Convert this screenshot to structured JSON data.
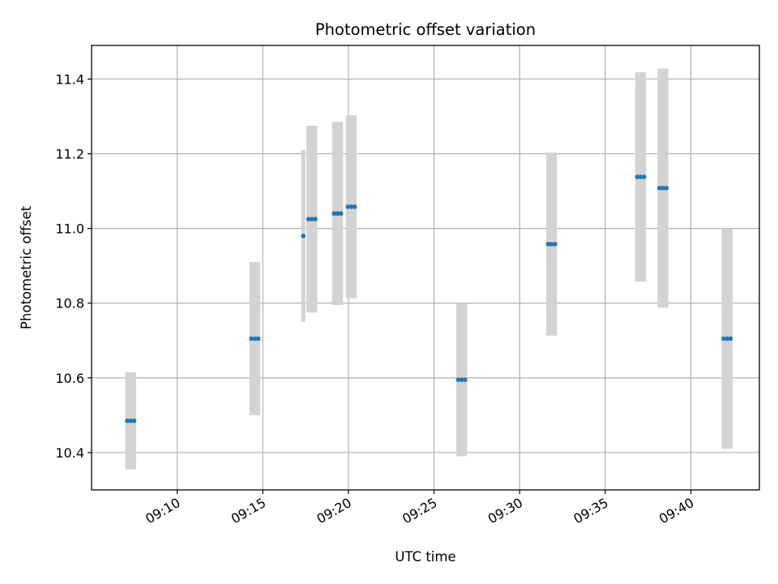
{
  "chart_data": {
    "type": "scatter",
    "title": "Photometric offset variation",
    "xlabel": "UTC time",
    "ylabel": "Photometric offset",
    "x_axis": {
      "kind": "time",
      "start": "09:05:00",
      "end": "09:44:00",
      "ticks": [
        "09:10",
        "09:15",
        "09:20",
        "09:25",
        "09:30",
        "09:35",
        "09:40"
      ]
    },
    "ylim": [
      10.3,
      11.49
    ],
    "yticks": [
      "10.4",
      "10.6",
      "10.8",
      "11.0",
      "11.2",
      "11.4"
    ],
    "grid": true,
    "colors": {
      "points": "#1f77b4",
      "errorbars": "#d3d3d3",
      "grid": "#b0b0b0"
    },
    "points": [
      {
        "time": "09:07:05",
        "y": 10.485,
        "err": 0.13
      },
      {
        "time": "09:07:17",
        "y": 10.485,
        "err": 0.13
      },
      {
        "time": "09:07:29",
        "y": 10.485,
        "err": 0.13
      },
      {
        "time": "09:14:20",
        "y": 10.705,
        "err": 0.205
      },
      {
        "time": "09:14:32",
        "y": 10.705,
        "err": 0.205
      },
      {
        "time": "09:14:44",
        "y": 10.705,
        "err": 0.205
      },
      {
        "time": "09:17:22",
        "y": 10.98,
        "err": 0.23
      },
      {
        "time": "09:17:40",
        "y": 11.025,
        "err": 0.25
      },
      {
        "time": "09:17:52",
        "y": 11.025,
        "err": 0.25
      },
      {
        "time": "09:18:04",
        "y": 11.025,
        "err": 0.25
      },
      {
        "time": "09:19:10",
        "y": 11.04,
        "err": 0.245
      },
      {
        "time": "09:19:22",
        "y": 11.04,
        "err": 0.245
      },
      {
        "time": "09:19:34",
        "y": 11.04,
        "err": 0.245
      },
      {
        "time": "09:19:58",
        "y": 11.058,
        "err": 0.245
      },
      {
        "time": "09:20:10",
        "y": 11.058,
        "err": 0.245
      },
      {
        "time": "09:20:22",
        "y": 11.058,
        "err": 0.245
      },
      {
        "time": "09:26:25",
        "y": 10.595,
        "err": 0.205
      },
      {
        "time": "09:26:37",
        "y": 10.595,
        "err": 0.205
      },
      {
        "time": "09:26:49",
        "y": 10.595,
        "err": 0.205
      },
      {
        "time": "09:31:40",
        "y": 10.958,
        "err": 0.245
      },
      {
        "time": "09:31:52",
        "y": 10.958,
        "err": 0.245
      },
      {
        "time": "09:32:04",
        "y": 10.958,
        "err": 0.245
      },
      {
        "time": "09:36:52",
        "y": 11.138,
        "err": 0.28
      },
      {
        "time": "09:37:04",
        "y": 11.138,
        "err": 0.28
      },
      {
        "time": "09:37:16",
        "y": 11.138,
        "err": 0.28
      },
      {
        "time": "09:38:10",
        "y": 11.108,
        "err": 0.32
      },
      {
        "time": "09:38:22",
        "y": 11.108,
        "err": 0.32
      },
      {
        "time": "09:38:34",
        "y": 11.108,
        "err": 0.32
      },
      {
        "time": "09:41:55",
        "y": 10.705,
        "err": 0.295
      },
      {
        "time": "09:42:07",
        "y": 10.705,
        "err": 0.295
      },
      {
        "time": "09:42:19",
        "y": 10.705,
        "err": 0.295
      }
    ]
  }
}
